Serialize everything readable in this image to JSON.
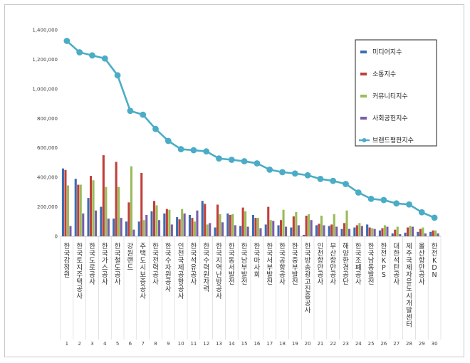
{
  "chart_data": {
    "type": "bar",
    "ylim": [
      0,
      1400000
    ],
    "yticks": [
      "0",
      "200,000",
      "400,000",
      "600,000",
      "800,000",
      "1,000,000",
      "1,200,000",
      "1,400,000"
    ],
    "categories": [
      "한국감정원",
      "한국토지주택공사",
      "한국도로공사",
      "한국가스공사",
      "한국철도공사",
      "강원랜드",
      "주택도시보증공사",
      "한국전력공사",
      "한국수자원공사",
      "인천국제공항공사",
      "한국석유공사",
      "한국수력원자력",
      "한국지역난방공사",
      "한국동서발전",
      "한국남부발전",
      "한국마사회",
      "한국서부발전",
      "한국공항공사",
      "한국중부발전",
      "한국방송광고진흥공사",
      "인천항만공사",
      "부산항만공사",
      "해양환경공단",
      "한국조폐공사",
      "한국남동발전",
      "한전KPS",
      "대한석탄공사",
      "제주국제자유도시개발센터",
      "울산항만공사",
      "한전KDN"
    ],
    "index_labels": [
      "1",
      "2",
      "3",
      "4",
      "5",
      "6",
      "7",
      "8",
      "9",
      "10",
      "11",
      "12",
      "13",
      "14",
      "15",
      "16",
      "17",
      "18",
      "19",
      "20",
      "21",
      "22",
      "23",
      "24",
      "25",
      "26",
      "27",
      "28",
      "29",
      "30"
    ],
    "series": [
      {
        "name": "미디어지수",
        "kind": "bar",
        "color": "#3d6cb0",
        "values": [
          460000,
          390000,
          260000,
          200000,
          120000,
          100000,
          100000,
          170000,
          155000,
          130000,
          145000,
          240000,
          60000,
          155000,
          70000,
          145000,
          80000,
          75000,
          60000,
          10000,
          75000,
          70000,
          50000,
          60000,
          80000,
          40000,
          20000,
          25000,
          30000,
          30000
        ]
      },
      {
        "name": "소통지수",
        "kind": "bar",
        "color": "#c0403a",
        "values": [
          450000,
          350000,
          410000,
          550000,
          505000,
          230000,
          430000,
          240000,
          185000,
          115000,
          125000,
          220000,
          215000,
          145000,
          195000,
          125000,
          200000,
          110000,
          135000,
          140000,
          85000,
          80000,
          90000,
          75000,
          60000,
          55000,
          45000,
          60000,
          50000,
          40000
        ]
      },
      {
        "name": "커뮤니티지수",
        "kind": "bar",
        "color": "#9bbb59",
        "values": [
          345000,
          350000,
          380000,
          335000,
          335000,
          475000,
          110000,
          210000,
          180000,
          185000,
          100000,
          80000,
          150000,
          150000,
          170000,
          125000,
          110000,
          180000,
          165000,
          150000,
          140000,
          150000,
          175000,
          90000,
          55000,
          75000,
          65000,
          70000,
          60000,
          40000
        ]
      },
      {
        "name": "사회공헌지수",
        "kind": "bar",
        "color": "#7b5ea8",
        "values": [
          70000,
          155000,
          175000,
          120000,
          125000,
          45000,
          145000,
          110000,
          80000,
          155000,
          175000,
          90000,
          95000,
          75000,
          65000,
          55000,
          105000,
          65000,
          75000,
          110000,
          75000,
          65000,
          50000,
          70000,
          50000,
          65000,
          15000,
          65000,
          20000,
          20000
        ]
      },
      {
        "name": "브랜드평판지수",
        "kind": "line",
        "color": "#4bacc6",
        "values": [
          1325000,
          1248000,
          1227000,
          1206000,
          1092000,
          851000,
          825000,
          728000,
          647000,
          591000,
          584000,
          576000,
          528000,
          519000,
          509000,
          495000,
          452000,
          435000,
          426000,
          414000,
          389000,
          376000,
          355000,
          297000,
          254000,
          246000,
          223000,
          216000,
          163000,
          126000
        ]
      }
    ]
  }
}
